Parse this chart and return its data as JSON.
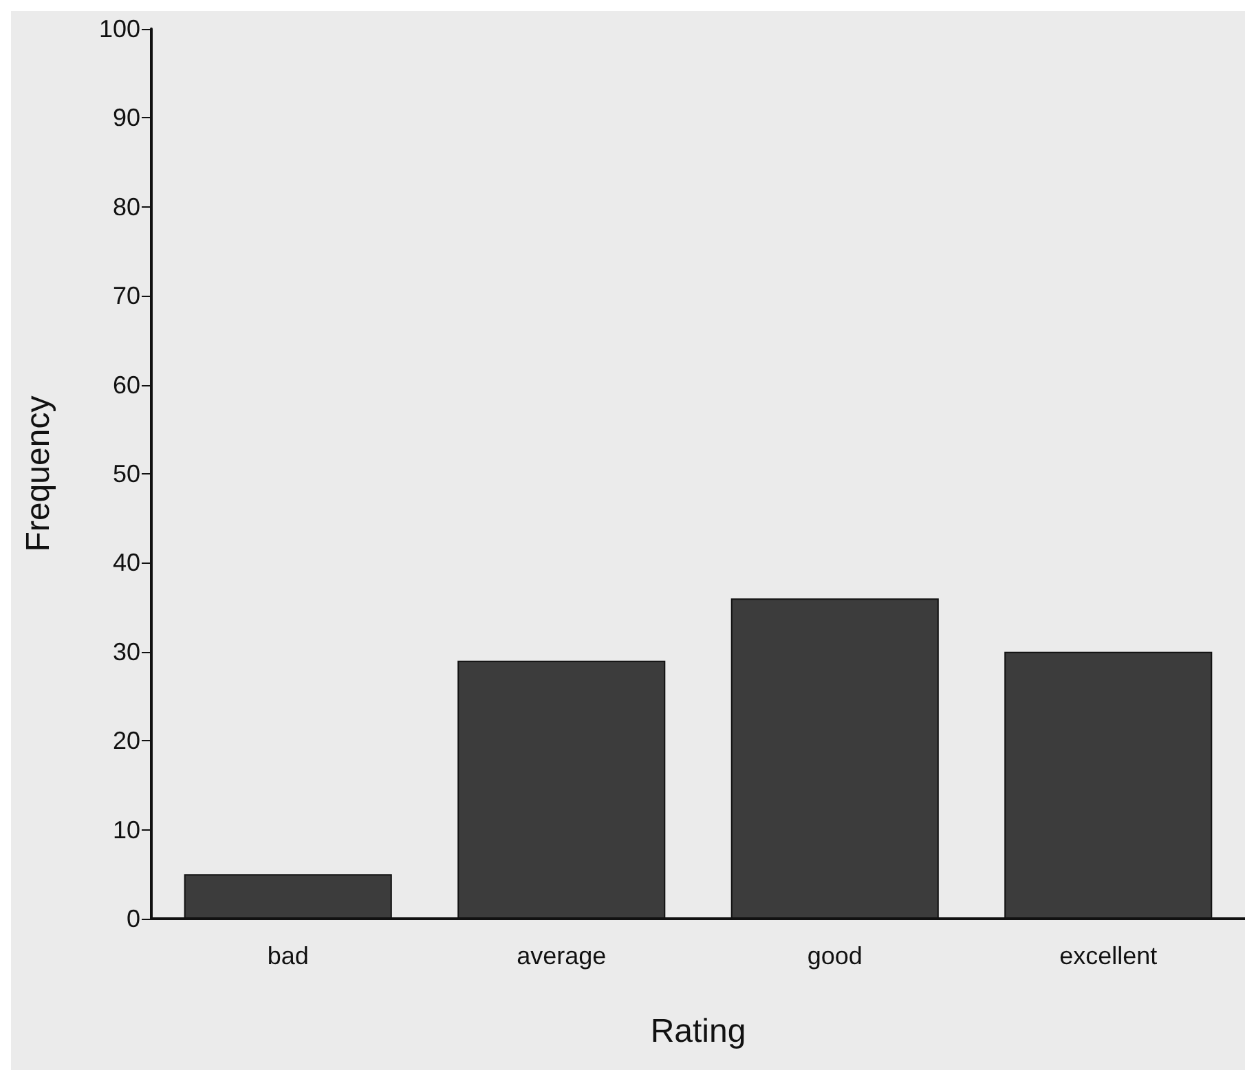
{
  "chart_data": {
    "type": "bar",
    "xlabel": "Rating",
    "ylabel": "Frequency",
    "categories": [
      "bad",
      "average",
      "good",
      "excellent"
    ],
    "values": [
      5,
      29,
      36,
      30
    ],
    "color": "#3c3c3c",
    "ylim": [
      0,
      100
    ],
    "yticks": [
      0,
      10,
      20,
      30,
      40,
      50,
      60,
      70,
      80,
      90,
      100
    ],
    "grid": false
  }
}
